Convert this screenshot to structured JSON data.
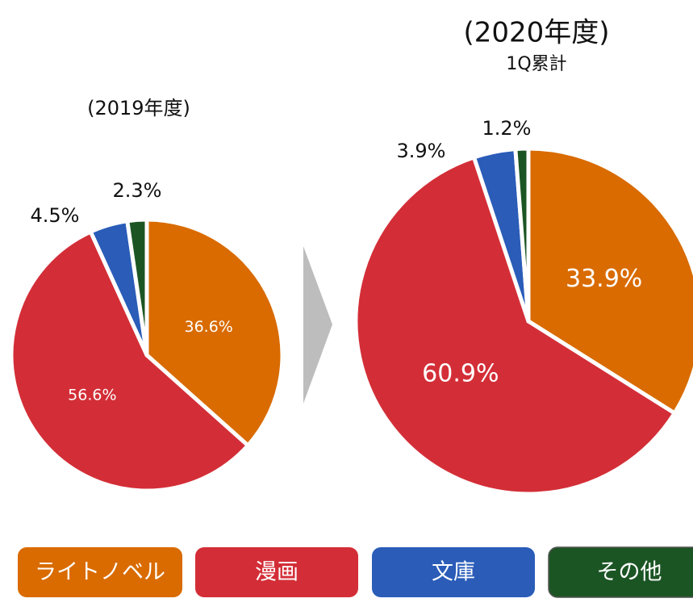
{
  "legend": {
    "labels": [
      "ライトノベル",
      "漫画",
      "文庫",
      "その他"
    ],
    "colors": [
      "#d96b00",
      "#d32e37",
      "#2a5cb8",
      "#1c5524"
    ]
  },
  "chart_data": [
    {
      "type": "pie",
      "title": "(2019年度)",
      "values": [
        36.6,
        56.6,
        4.5,
        2.3
      ],
      "value_labels": [
        "36.6%",
        "56.6%",
        "4.5%",
        "2.3%"
      ]
    },
    {
      "type": "pie",
      "title": "(2020年度)",
      "subtitle": "1Q累計",
      "values": [
        33.9,
        60.9,
        3.9,
        1.2
      ],
      "value_labels": [
        "33.9%",
        "60.9%",
        "3.9%",
        "1.2%"
      ]
    }
  ]
}
